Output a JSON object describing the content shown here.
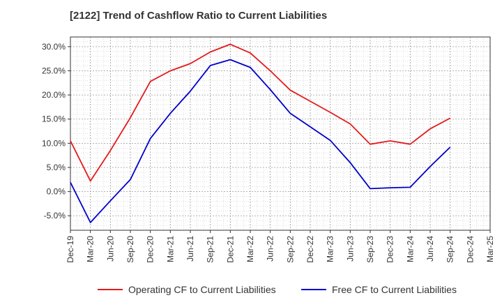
{
  "chart_data": {
    "type": "line",
    "title": "[2122]  Trend of Cashflow Ratio to Current Liabilities",
    "xlabel": "",
    "ylabel": "",
    "categories": [
      "Dec-19",
      "Mar-20",
      "Jun-20",
      "Sep-20",
      "Dec-20",
      "Mar-21",
      "Jun-21",
      "Sep-21",
      "Dec-21",
      "Mar-22",
      "Jun-22",
      "Sep-22",
      "Dec-22",
      "Mar-23",
      "Jun-23",
      "Sep-23",
      "Dec-23",
      "Mar-24",
      "Jun-24",
      "Sep-24",
      "Dec-24",
      "Mar-25"
    ],
    "y_ticks": [
      "30.0%",
      "25.0%",
      "20.0%",
      "15.0%",
      "10.0%",
      "5.0%",
      "0.0%",
      "-5.0%"
    ],
    "ylim": [
      -8,
      32
    ],
    "grid": true,
    "legend_position": "bottom",
    "series": [
      {
        "name": "Operating CF to Current Liabilities",
        "color": "#e31a1c",
        "values": [
          10.5,
          2.2,
          8.5,
          15.3,
          22.8,
          25.0,
          26.5,
          28.9,
          30.5,
          28.7,
          25.0,
          21.0,
          18.7,
          16.4,
          14.0,
          9.8,
          10.5,
          9.8,
          13.0,
          15.2,
          null,
          null
        ]
      },
      {
        "name": "Free CF to Current Liabilities",
        "color": "#0000cc",
        "values": [
          1.9,
          -6.4,
          -1.9,
          2.5,
          11.0,
          16.2,
          20.8,
          26.1,
          27.3,
          25.7,
          21.1,
          16.2,
          13.4,
          10.6,
          6.0,
          0.6,
          0.8,
          0.9,
          5.2,
          9.2,
          null,
          null
        ]
      }
    ]
  }
}
